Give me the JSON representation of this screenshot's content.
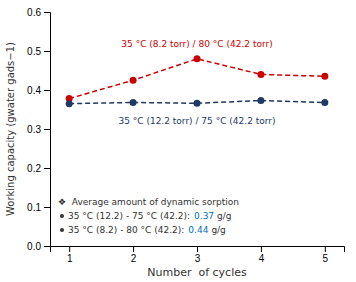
{
  "chart_data": {
    "type": "line",
    "x": [
      1,
      2,
      3,
      4,
      5
    ],
    "series": [
      {
        "name": "35 °C (8.2 torr) / 80 °C (42.2 torr)",
        "color": "#cc0000",
        "line_style": "dashed",
        "marker": "circle",
        "values": [
          0.378,
          0.425,
          0.48,
          0.44,
          0.435
        ]
      },
      {
        "name": "35 °C (12.2 torr) / 75 °C (42.2 torr)",
        "color": "#1F3864",
        "line_style": "dashed",
        "marker": "circle",
        "values": [
          0.365,
          0.368,
          0.366,
          0.373,
          0.368
        ]
      }
    ],
    "xlabel": "Number  of cycles",
    "ylabel": "Working capacity (gwater gads−1)",
    "xlim": [
      0.7,
      5.3
    ],
    "xticks": [
      1,
      2,
      3,
      4,
      5
    ],
    "ylim": [
      0,
      0.6
    ],
    "yticks": [
      {
        "value": 0,
        "label": "0.0"
      },
      0.1,
      0.2,
      0.3,
      0.4,
      0.5,
      0.6
    ],
    "grid": false,
    "averages": {
      "title": "❖  Average amount of dynamic sorption",
      "color": "#0070C0",
      "items": [
        {
          "label": "35 °C (12.2) - 75 °C (42.2):",
          "value": 0.37,
          "unit": "g/g"
        },
        {
          "label": "35 °C (8.2) - 80 °C (42.2):",
          "value": 0.44,
          "unit": "g/g"
        }
      ]
    }
  }
}
